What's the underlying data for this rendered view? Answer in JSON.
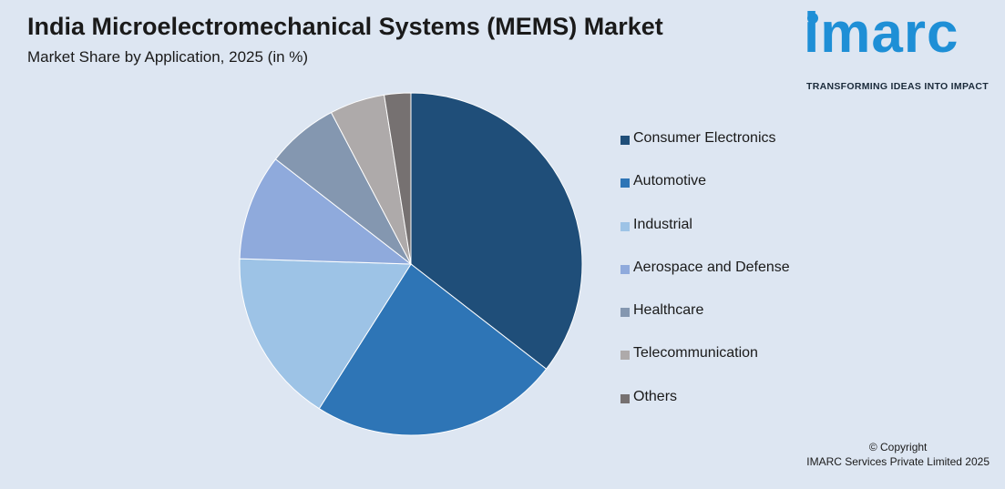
{
  "header": {
    "title": "India Microelectromechanical Systems (MEMS) Market",
    "subtitle": "Market Share by Application, 2025 (in %)"
  },
  "logo": {
    "word": "imarc",
    "tagline": "TRANSFORMING IDEAS INTO IMPACT"
  },
  "chart_data": {
    "type": "pie",
    "title": "India Microelectromechanical Systems (MEMS) Market",
    "subtitle": "Market Share by Application, 2025 (in %)",
    "legend_position": "right",
    "labels": [
      "Consumer Electronics",
      "Automotive",
      "Industrial",
      "Aerospace and Defense",
      "Healthcare",
      "Telecommunication",
      "Others"
    ],
    "values": [
      35.5,
      23.5,
      16.5,
      10.0,
      6.8,
      5.2,
      2.5
    ],
    "colors": [
      "#1f4e79",
      "#2e75b6",
      "#9dc3e6",
      "#8faadc",
      "#8497b0",
      "#aeaaaa",
      "#767171"
    ]
  },
  "footer": {
    "copyright_line1": "© Copyright",
    "copyright_line2": "IMARC Services Private Limited 2025"
  }
}
